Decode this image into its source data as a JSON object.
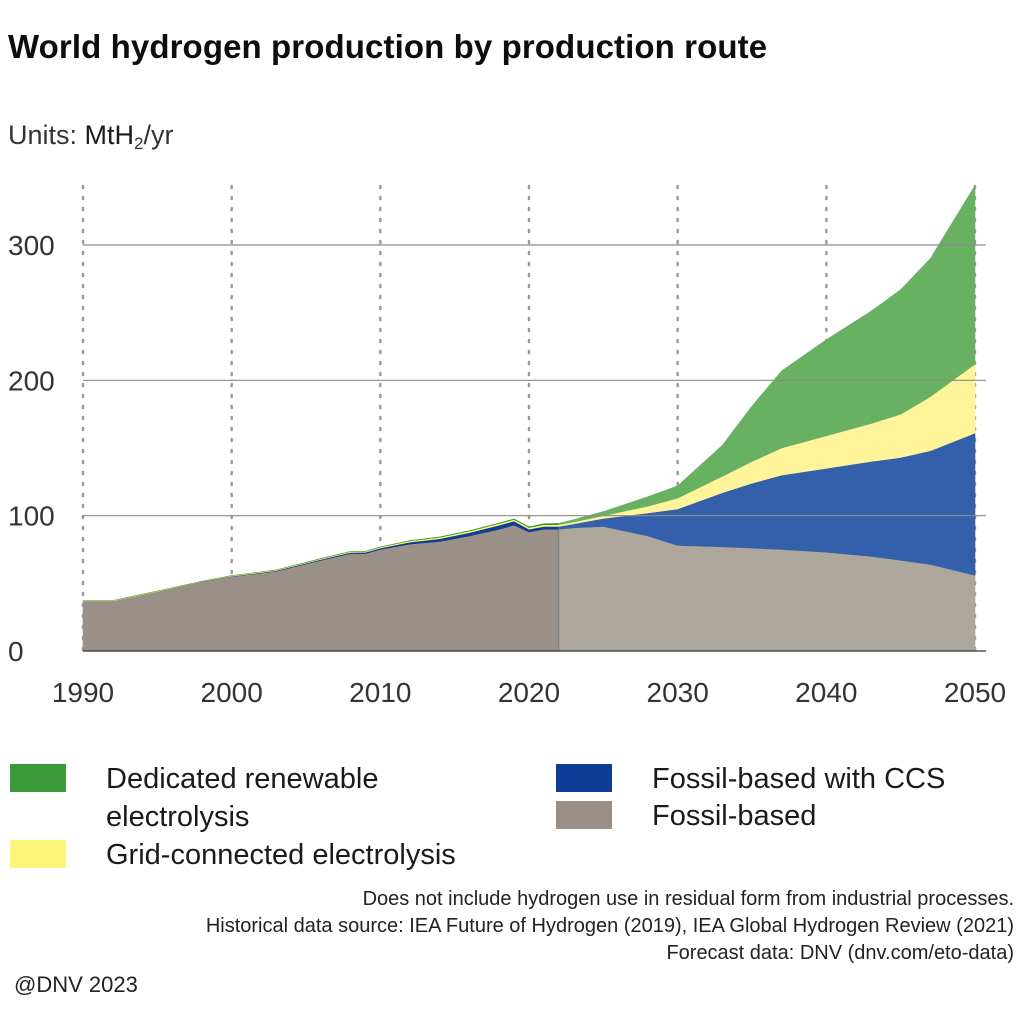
{
  "title": "World hydrogen production by production route",
  "units": {
    "prefix": "Units: ",
    "unit": "MtH",
    "sub": "2",
    "suffix": "/yr"
  },
  "legend": [
    {
      "label": "Dedicated renewable electrolysis",
      "color": "#3a9a3a"
    },
    {
      "label": "Grid-connected electrolysis",
      "color": "#fff47a"
    },
    {
      "label": "Fossil-based with CCS",
      "color": "#0f3c96"
    },
    {
      "label": "Fossil-based",
      "color": "#9b9087"
    }
  ],
  "notes": [
    "Does not include hydrogen use in residual form from industrial processes.",
    "Historical data source: IEA Future of Hydrogen (2019), IEA Global Hydrogen Review (2021)",
    "Forecast data: DNV (dnv.com/eto-data)"
  ],
  "copyright": "@DNV 2023",
  "chart_data": {
    "type": "area",
    "stacked": true,
    "title": "World hydrogen production by production route",
    "ylabel": "MtH2/yr",
    "xlim": [
      1990,
      2050
    ],
    "ylim": [
      0,
      345
    ],
    "yticks": [
      0,
      100,
      200,
      300
    ],
    "xticks": [
      1990,
      2000,
      2010,
      2020,
      2030,
      2040,
      2050
    ],
    "x_tick_labels": [
      "1990",
      "2000",
      "2010",
      "2020",
      "2030",
      "2040",
      "2050"
    ],
    "y_tick_labels": [
      "0",
      "100",
      "200",
      "300"
    ],
    "historical_end": 2022,
    "colors": {
      "Fossil-based": {
        "historical": "#9b9087",
        "forecast": "#aea79c"
      },
      "Fossil-based with CCS": {
        "historical": "#0f3c96",
        "forecast": "#3460ab"
      },
      "Grid-connected electrolysis": {
        "historical": "#fff47a",
        "forecast": "#fff49a"
      },
      "Dedicated renewable electrolysis": {
        "historical": "#3a9a3a",
        "forecast": "#68b163"
      }
    },
    "grid": {
      "horizontal": "solid",
      "vertical": "dotted"
    },
    "x": [
      1990,
      1992,
      1995,
      1998,
      2000,
      2003,
      2006,
      2008,
      2009,
      2010,
      2012,
      2014,
      2016,
      2018,
      2019,
      2020,
      2021,
      2022,
      2023,
      2025,
      2028,
      2030,
      2033,
      2035,
      2037,
      2040,
      2043,
      2045,
      2047,
      2050
    ],
    "series": [
      {
        "name": "Fossil-based",
        "values": [
          37,
          37,
          44,
          51,
          55,
          59,
          67,
          72,
          72,
          75,
          79,
          81,
          85,
          90,
          93,
          88,
          90,
          90,
          91,
          92,
          85,
          78,
          77,
          76,
          75,
          73,
          70,
          67,
          64,
          56
        ]
      },
      {
        "name": "Fossil-based with CCS",
        "values": [
          0,
          0,
          0,
          0.2,
          0.3,
          0.4,
          0.6,
          0.8,
          0.9,
          1.0,
          1.5,
          2,
          2.5,
          3,
          3,
          2,
          2,
          2,
          3,
          6,
          17,
          27,
          40,
          48,
          55,
          62,
          70,
          76,
          84,
          105
        ]
      },
      {
        "name": "Grid-connected electrolysis",
        "values": [
          0.3,
          0.3,
          0.3,
          0.3,
          0.4,
          0.5,
          0.6,
          0.7,
          0.7,
          0.8,
          0.9,
          1.0,
          1.1,
          1.2,
          1.2,
          1.2,
          1.3,
          1.3,
          1.4,
          2,
          5,
          8,
          12,
          16,
          20,
          24,
          28,
          32,
          40,
          51
        ]
      },
      {
        "name": "Dedicated renewable electrolysis",
        "values": [
          0,
          0,
          0,
          0,
          0,
          0,
          0.1,
          0.1,
          0.1,
          0.1,
          0.2,
          0.3,
          0.3,
          0.4,
          0.4,
          0.5,
          0.8,
          1,
          1.6,
          3,
          7,
          9,
          23,
          41,
          57,
          71,
          83,
          92,
          102,
          132
        ]
      }
    ]
  }
}
